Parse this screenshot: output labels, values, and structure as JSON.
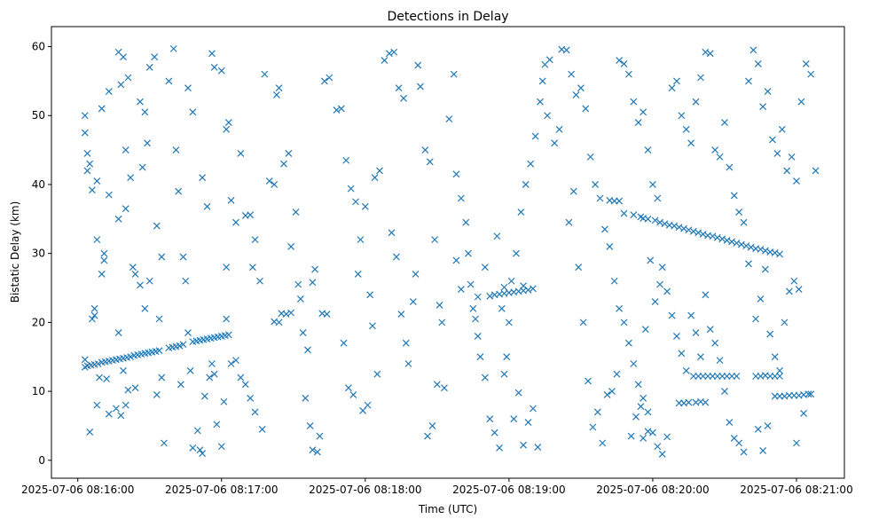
{
  "chart_data": {
    "type": "scatter",
    "title": "Detections in Delay",
    "xlabel": "Time (UTC)",
    "ylabel": "Bistatic Delay (km)",
    "x_unit": "seconds after 2025-07-06 08:16:00 UTC",
    "xlim": [
      -11,
      320
    ],
    "ylim": [
      -2.6,
      62.9
    ],
    "x_ticks": [
      0,
      60,
      120,
      180,
      240,
      300
    ],
    "x_tick_labels": [
      "2025-07-06 08:16:00",
      "2025-07-06 08:17:00",
      "2025-07-06 08:18:00",
      "2025-07-06 08:19:00",
      "2025-07-06 08:20:00",
      "2025-07-06 08:21:00"
    ],
    "y_ticks": [
      0,
      10,
      20,
      30,
      40,
      50,
      60
    ],
    "y_tick_labels": [
      "0",
      "10",
      "20",
      "30",
      "40",
      "50",
      "60"
    ],
    "grid": false,
    "marker": "x",
    "color": "#1f77b4",
    "points": [
      [
        4,
        13.7
      ],
      [
        5.5,
        13.8
      ],
      [
        7,
        13.9
      ],
      [
        8.5,
        14.0
      ],
      [
        10,
        14.2
      ],
      [
        11.5,
        14.3
      ],
      [
        13,
        14.4
      ],
      [
        14.5,
        14.5
      ],
      [
        16,
        14.6
      ],
      [
        17.5,
        14.7
      ],
      [
        19,
        14.8
      ],
      [
        20.5,
        14.9
      ],
      [
        22,
        15.0
      ],
      [
        23.5,
        15.2
      ],
      [
        25,
        15.3
      ],
      [
        26.5,
        15.4
      ],
      [
        28,
        15.5
      ],
      [
        29.5,
        15.6
      ],
      [
        31,
        15.7
      ],
      [
        32.5,
        15.8
      ],
      [
        34,
        15.9
      ],
      [
        38,
        16.3
      ],
      [
        39.5,
        16.4
      ],
      [
        41,
        16.5
      ],
      [
        42.5,
        16.6
      ],
      [
        44,
        16.8
      ],
      [
        48,
        17.2
      ],
      [
        49.5,
        17.3
      ],
      [
        51,
        17.4
      ],
      [
        52.5,
        17.5
      ],
      [
        54,
        17.6
      ],
      [
        55.5,
        17.7
      ],
      [
        57,
        17.8
      ],
      [
        58.5,
        17.9
      ],
      [
        60,
        18.0
      ],
      [
        61.5,
        18.1
      ],
      [
        63,
        18.2
      ],
      [
        3,
        14.6
      ],
      [
        3,
        13.5
      ],
      [
        167,
        23.7
      ],
      [
        172,
        23.8
      ],
      [
        174,
        24.0
      ],
      [
        176,
        24.1
      ],
      [
        178,
        24.2
      ],
      [
        180,
        24.3
      ],
      [
        182,
        24.4
      ],
      [
        184,
        24.5
      ],
      [
        186,
        24.6
      ],
      [
        188,
        24.7
      ],
      [
        190,
        24.9
      ],
      [
        178,
        25.1
      ],
      [
        186,
        25.3
      ],
      [
        228,
        35.8
      ],
      [
        232,
        35.6
      ],
      [
        235,
        35.3
      ],
      [
        236,
        35.1
      ],
      [
        238,
        35.0
      ],
      [
        241,
        34.8
      ],
      [
        243,
        34.5
      ],
      [
        245,
        34.3
      ],
      [
        247,
        34.1
      ],
      [
        249,
        34.0
      ],
      [
        251,
        33.8
      ],
      [
        253,
        33.6
      ],
      [
        255,
        33.4
      ],
      [
        257,
        33.2
      ],
      [
        259,
        33.0
      ],
      [
        261,
        32.8
      ],
      [
        263,
        32.6
      ],
      [
        265,
        32.5
      ],
      [
        267,
        32.3
      ],
      [
        269,
        32.1
      ],
      [
        271,
        31.9
      ],
      [
        273,
        31.7
      ],
      [
        275,
        31.5
      ],
      [
        277,
        31.3
      ],
      [
        279,
        31.1
      ],
      [
        281,
        30.9
      ],
      [
        283,
        30.7
      ],
      [
        285,
        30.6
      ],
      [
        287,
        30.4
      ],
      [
        289,
        30.2
      ],
      [
        291,
        30.1
      ],
      [
        293,
        29.9
      ],
      [
        257,
        12.2
      ],
      [
        259,
        12.2
      ],
      [
        261,
        12.2
      ],
      [
        263,
        12.2
      ],
      [
        265,
        12.2
      ],
      [
        267,
        12.2
      ],
      [
        269,
        12.2
      ],
      [
        271,
        12.2
      ],
      [
        273,
        12.2
      ],
      [
        275,
        12.2
      ],
      [
        251,
        8.3
      ],
      [
        253,
        8.3
      ],
      [
        255,
        8.4
      ],
      [
        258,
        8.4
      ],
      [
        260,
        8.5
      ],
      [
        262,
        8.4
      ],
      [
        283,
        12.2
      ],
      [
        285,
        12.2
      ],
      [
        287,
        12.3
      ],
      [
        289,
        12.2
      ],
      [
        291,
        12.2
      ],
      [
        293,
        12.2
      ],
      [
        291,
        9.3
      ],
      [
        293,
        9.3
      ],
      [
        295,
        9.3
      ],
      [
        297,
        9.4
      ],
      [
        299,
        9.4
      ],
      [
        301,
        9.4
      ],
      [
        303,
        9.5
      ],
      [
        306,
        9.6
      ],
      [
        222,
        37.7
      ],
      [
        224,
        37.6
      ],
      [
        226,
        37.6
      ],
      [
        85,
        21.3
      ],
      [
        87,
        21.2
      ],
      [
        89,
        21.4
      ],
      [
        102,
        21.3
      ],
      [
        104,
        21.2
      ],
      [
        82,
        20.1
      ],
      [
        84,
        20.0
      ],
      [
        3,
        50
      ],
      [
        3,
        47.5
      ],
      [
        4,
        44.5
      ],
      [
        5,
        43
      ],
      [
        4,
        42
      ],
      [
        6,
        39.2
      ],
      [
        8,
        40.5
      ],
      [
        8,
        32
      ],
      [
        11,
        30
      ],
      [
        11,
        29
      ],
      [
        10,
        27
      ],
      [
        7,
        22
      ],
      [
        7,
        21
      ],
      [
        6,
        20.5
      ],
      [
        9,
        12
      ],
      [
        12,
        11.8
      ],
      [
        8,
        8
      ],
      [
        13,
        6.7
      ],
      [
        5,
        4.1
      ],
      [
        10,
        51
      ],
      [
        13,
        53.5
      ],
      [
        17,
        59.2
      ],
      [
        19,
        58.5
      ],
      [
        21,
        55.5
      ],
      [
        18,
        54.5
      ],
      [
        20,
        45
      ],
      [
        22,
        41
      ],
      [
        13,
        38.5
      ],
      [
        20,
        36.5
      ],
      [
        17,
        35
      ],
      [
        23,
        28
      ],
      [
        24,
        27
      ],
      [
        26,
        25.4
      ],
      [
        28,
        22
      ],
      [
        17,
        18.5
      ],
      [
        19,
        13
      ],
      [
        21,
        10.2
      ],
      [
        24,
        10.5
      ],
      [
        20,
        8
      ],
      [
        18,
        6.5
      ],
      [
        16,
        7.5
      ],
      [
        26,
        52
      ],
      [
        28,
        50.5
      ],
      [
        30,
        57
      ],
      [
        32,
        58.5
      ],
      [
        29,
        46
      ],
      [
        27,
        42.5
      ],
      [
        33,
        34
      ],
      [
        35,
        29.5
      ],
      [
        30,
        26
      ],
      [
        34,
        20.5
      ],
      [
        35,
        12
      ],
      [
        33,
        9.5
      ],
      [
        36,
        2.5
      ],
      [
        38,
        55
      ],
      [
        40,
        59.7
      ],
      [
        41,
        45
      ],
      [
        42,
        39
      ],
      [
        44,
        29.5
      ],
      [
        45,
        26
      ],
      [
        46,
        18.5
      ],
      [
        43,
        11
      ],
      [
        47,
        13
      ],
      [
        48,
        1.8
      ],
      [
        50,
        4.3
      ],
      [
        51,
        1.5
      ],
      [
        52,
        1
      ],
      [
        53,
        9.3
      ],
      [
        55,
        12
      ],
      [
        56,
        14
      ],
      [
        57,
        12.5
      ],
      [
        58,
        5.2
      ],
      [
        60,
        2
      ],
      [
        61,
        8.5
      ],
      [
        46,
        54
      ],
      [
        48,
        50.5
      ],
      [
        52,
        41
      ],
      [
        54,
        36.8
      ],
      [
        56,
        59
      ],
      [
        57,
        57
      ],
      [
        60,
        56.5
      ],
      [
        62,
        48
      ],
      [
        63,
        49
      ],
      [
        64,
        37.7
      ],
      [
        66,
        34.5
      ],
      [
        68,
        44.5
      ],
      [
        70,
        35.5
      ],
      [
        72,
        35.6
      ],
      [
        74,
        32
      ],
      [
        76,
        26
      ],
      [
        73,
        28
      ],
      [
        64,
        14
      ],
      [
        66,
        14.5
      ],
      [
        68,
        12
      ],
      [
        70,
        11
      ],
      [
        72,
        9
      ],
      [
        74,
        7
      ],
      [
        77,
        4.5
      ],
      [
        62,
        28
      ],
      [
        62,
        20.5
      ],
      [
        78,
        56
      ],
      [
        80,
        40.5
      ],
      [
        82,
        40
      ],
      [
        83,
        53
      ],
      [
        84,
        54
      ],
      [
        86,
        43
      ],
      [
        88,
        44.5
      ],
      [
        89,
        31
      ],
      [
        91,
        36
      ],
      [
        92,
        25.5
      ],
      [
        93,
        23.4
      ],
      [
        94,
        18.5
      ],
      [
        96,
        16
      ],
      [
        98,
        25.8
      ],
      [
        99,
        27.7
      ],
      [
        95,
        9
      ],
      [
        97,
        5
      ],
      [
        98,
        1.5
      ],
      [
        100,
        1.2
      ],
      [
        101,
        3.5
      ],
      [
        103,
        55
      ],
      [
        105,
        55.5
      ],
      [
        108,
        50.8
      ],
      [
        110,
        51
      ],
      [
        112,
        43.5
      ],
      [
        114,
        39.4
      ],
      [
        116,
        37.5
      ],
      [
        118,
        32
      ],
      [
        120,
        36.8
      ],
      [
        117,
        27
      ],
      [
        122,
        24
      ],
      [
        123,
        19.5
      ],
      [
        125,
        12.5
      ],
      [
        111,
        17
      ],
      [
        115,
        9.5
      ],
      [
        119,
        7.2
      ],
      [
        121,
        8
      ],
      [
        113,
        10.5
      ],
      [
        124,
        41
      ],
      [
        126,
        42
      ],
      [
        128,
        58
      ],
      [
        130,
        59
      ],
      [
        132,
        59.2
      ],
      [
        134,
        54
      ],
      [
        136,
        52.5
      ],
      [
        131,
        33
      ],
      [
        133,
        29.5
      ],
      [
        135,
        21.2
      ],
      [
        137,
        17
      ],
      [
        138,
        14
      ],
      [
        140,
        23
      ],
      [
        141,
        27
      ],
      [
        142,
        57.3
      ],
      [
        143,
        54.2
      ],
      [
        145,
        45
      ],
      [
        147,
        43.3
      ],
      [
        149,
        32
      ],
      [
        151,
        22.5
      ],
      [
        152,
        20
      ],
      [
        153,
        10.5
      ],
      [
        150,
        11
      ],
      [
        148,
        5
      ],
      [
        146,
        3.5
      ],
      [
        155,
        49.5
      ],
      [
        157,
        56
      ],
      [
        158,
        41.5
      ],
      [
        160,
        38
      ],
      [
        162,
        34.5
      ],
      [
        164,
        25.5
      ],
      [
        165,
        22
      ],
      [
        167,
        18
      ],
      [
        168,
        15
      ],
      [
        170,
        12
      ],
      [
        172,
        6
      ],
      [
        174,
        4
      ],
      [
        176,
        1.8
      ],
      [
        178,
        12.5
      ],
      [
        180,
        20
      ],
      [
        181,
        26
      ],
      [
        183,
        30
      ],
      [
        185,
        36
      ],
      [
        187,
        40
      ],
      [
        189,
        43
      ],
      [
        191,
        47
      ],
      [
        193,
        52
      ],
      [
        195,
        57.4
      ],
      [
        197,
        58.1
      ],
      [
        199,
        46
      ],
      [
        201,
        48
      ],
      [
        158,
        29
      ],
      [
        160,
        24.8
      ],
      [
        163,
        30
      ],
      [
        166,
        20.5
      ],
      [
        170,
        28
      ],
      [
        175,
        32.5
      ],
      [
        177,
        22
      ],
      [
        179,
        15
      ],
      [
        182,
        6
      ],
      [
        184,
        9.8
      ],
      [
        186,
        2.2
      ],
      [
        188,
        5.5
      ],
      [
        190,
        7.5
      ],
      [
        192,
        1.9
      ],
      [
        194,
        55
      ],
      [
        196,
        50
      ],
      [
        202,
        59.6
      ],
      [
        204,
        59.5
      ],
      [
        206,
        56
      ],
      [
        208,
        53
      ],
      [
        210,
        54
      ],
      [
        212,
        51
      ],
      [
        214,
        44
      ],
      [
        216,
        40
      ],
      [
        218,
        38
      ],
      [
        220,
        33.5
      ],
      [
        222,
        31
      ],
      [
        224,
        26
      ],
      [
        226,
        22
      ],
      [
        228,
        20
      ],
      [
        230,
        17
      ],
      [
        232,
        14
      ],
      [
        234,
        11
      ],
      [
        236,
        9
      ],
      [
        238,
        7
      ],
      [
        240,
        4
      ],
      [
        242,
        2
      ],
      [
        244,
        0.9
      ],
      [
        246,
        3.4
      ],
      [
        205,
        34.5
      ],
      [
        207,
        39
      ],
      [
        209,
        28
      ],
      [
        211,
        20
      ],
      [
        213,
        11.5
      ],
      [
        215,
        4.8
      ],
      [
        217,
        7
      ],
      [
        219,
        2.5
      ],
      [
        221,
        9.5
      ],
      [
        223,
        10
      ],
      [
        225,
        12.5
      ],
      [
        226,
        58
      ],
      [
        228,
        57.5
      ],
      [
        230,
        56
      ],
      [
        232,
        52
      ],
      [
        234,
        49
      ],
      [
        236,
        50.5
      ],
      [
        238,
        45
      ],
      [
        240,
        40
      ],
      [
        242,
        38
      ],
      [
        244,
        28
      ],
      [
        246,
        24.5
      ],
      [
        248,
        21
      ],
      [
        250,
        18
      ],
      [
        252,
        15.5
      ],
      [
        254,
        13
      ],
      [
        243,
        25.5
      ],
      [
        239,
        29
      ],
      [
        241,
        23
      ],
      [
        237,
        19
      ],
      [
        235,
        7.8
      ],
      [
        233,
        6.3
      ],
      [
        231,
        3.5
      ],
      [
        236,
        3.2
      ],
      [
        238,
        4.2
      ],
      [
        248,
        54
      ],
      [
        250,
        55
      ],
      [
        252,
        50
      ],
      [
        254,
        48
      ],
      [
        256,
        46
      ],
      [
        258,
        52
      ],
      [
        260,
        55.5
      ],
      [
        262,
        59.2
      ],
      [
        264,
        59
      ],
      [
        266,
        45
      ],
      [
        268,
        44
      ],
      [
        270,
        49
      ],
      [
        272,
        42.5
      ],
      [
        274,
        38.4
      ],
      [
        276,
        36
      ],
      [
        278,
        34.5
      ],
      [
        280,
        28.5
      ],
      [
        262,
        24
      ],
      [
        264,
        19
      ],
      [
        266,
        17
      ],
      [
        268,
        14.5
      ],
      [
        270,
        10
      ],
      [
        272,
        5.5
      ],
      [
        274,
        3.2
      ],
      [
        276,
        2.5
      ],
      [
        278,
        1.2
      ],
      [
        260,
        15
      ],
      [
        258,
        18.5
      ],
      [
        256,
        21
      ],
      [
        280,
        55
      ],
      [
        282,
        59.5
      ],
      [
        284,
        57.5
      ],
      [
        286,
        51.3
      ],
      [
        288,
        53.5
      ],
      [
        290,
        46.5
      ],
      [
        292,
        44.5
      ],
      [
        294,
        48
      ],
      [
        296,
        42
      ],
      [
        298,
        44
      ],
      [
        300,
        40.5
      ],
      [
        302,
        52
      ],
      [
        304,
        57.5
      ],
      [
        306,
        56
      ],
      [
        308,
        42
      ],
      [
        283,
        20.5
      ],
      [
        285,
        23.4
      ],
      [
        287,
        27.7
      ],
      [
        289,
        18.3
      ],
      [
        291,
        15
      ],
      [
        293,
        13
      ],
      [
        295,
        20
      ],
      [
        297,
        24.5
      ],
      [
        299,
        26
      ],
      [
        301,
        24.8
      ],
      [
        303,
        6.8
      ],
      [
        305,
        9.6
      ],
      [
        300,
        2.5
      ],
      [
        288,
        5
      ],
      [
        286,
        1.4
      ],
      [
        284,
        4.5
      ]
    ]
  }
}
